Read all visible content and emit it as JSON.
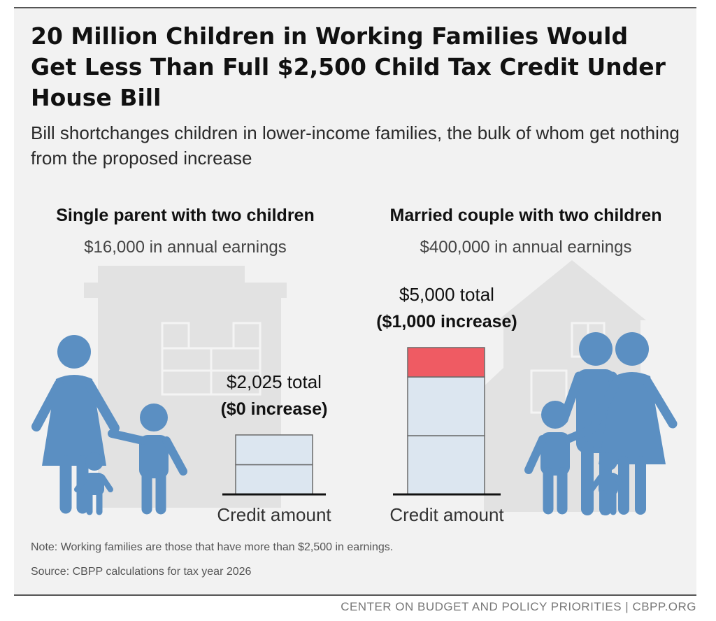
{
  "title": "20 Million Children in Working Families Would Get Less Than Full $2,500 Child Tax Credit Under House Bill",
  "subtitle": "Bill shortchanges children in lower-income families, the bulk of whom get nothing from the proposed increase",
  "note": "Note: Working families are those that have more than $2,500 in earnings.",
  "source": "Source: CBPP calculations for tax year 2026",
  "footer": "CENTER ON BUDGET AND POLICY PRIORITIES | CBPP.ORG",
  "colors": {
    "base_fill": "#dce6f0",
    "increase_fill": "#ef5b63",
    "figure_blue": "#5b8fc2",
    "building_gray": "#e2e2e2",
    "background": "#f2f2f2"
  },
  "icons": [
    "apartment-building-icon",
    "house-icon",
    "single-parent-family-icon",
    "married-couple-family-icon"
  ],
  "chart_data": [
    {
      "type": "bar",
      "title": "Single parent with two children",
      "subtitle": "$16,000 in annual earnings",
      "xlabel": "Credit amount",
      "unit": "$",
      "total": 2025,
      "increase": 0,
      "segments": [
        1012.5,
        1012.5
      ],
      "total_label": "$2,025 total",
      "increase_label": "($0 increase)",
      "ylim": [
        0,
        5000
      ]
    },
    {
      "type": "bar",
      "title": "Married couple with two children",
      "subtitle": "$400,000 in annual earnings",
      "xlabel": "Credit amount",
      "unit": "$",
      "total": 5000,
      "increase": 1000,
      "segments": [
        2000,
        2000
      ],
      "total_label": "$5,000 total",
      "increase_label": "($1,000 increase)",
      "ylim": [
        0,
        5000
      ]
    }
  ]
}
